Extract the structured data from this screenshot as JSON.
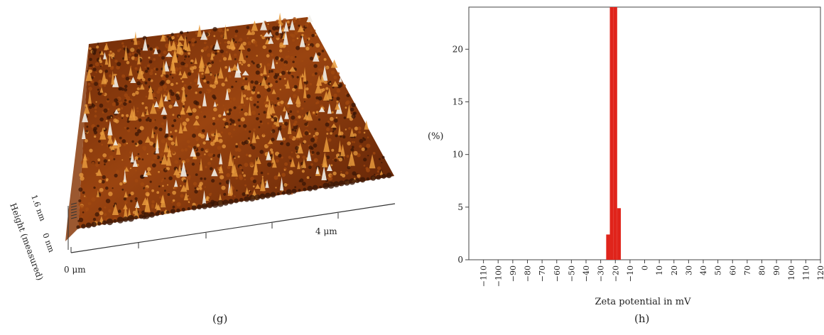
{
  "panels": {
    "g": {
      "caption": "(g)"
    },
    "h": {
      "caption": "(h)"
    }
  },
  "afm": {
    "height_axis_label": "Height (measured)",
    "height_ticks": [
      "1.6 nm",
      "0 nm"
    ],
    "x_ticks": [
      "0 μm",
      "4 μm"
    ],
    "colors": {
      "dark": "#3a1606",
      "mid": "#a24a10",
      "light": "#e89a3c",
      "peak": "#f2efe8"
    }
  },
  "chart_data": {
    "type": "bar",
    "ylabel": "(%)",
    "xlabel": "Zeta potential in mV",
    "xlim": [
      -120,
      120
    ],
    "ylim": [
      0,
      24
    ],
    "yticks": [
      0,
      5,
      10,
      15,
      20
    ],
    "xticks": [
      -110,
      -100,
      -90,
      -80,
      -70,
      -60,
      -50,
      -40,
      -30,
      -20,
      -10,
      0,
      10,
      20,
      30,
      40,
      50,
      60,
      70,
      80,
      90,
      100,
      110,
      120
    ],
    "x": [
      -25,
      -22.5,
      -20,
      -17.5
    ],
    "values": [
      2.4,
      24,
      24,
      4.9
    ],
    "bar_width": 2.5,
    "bar_color": "#e0241b",
    "grid": false
  }
}
